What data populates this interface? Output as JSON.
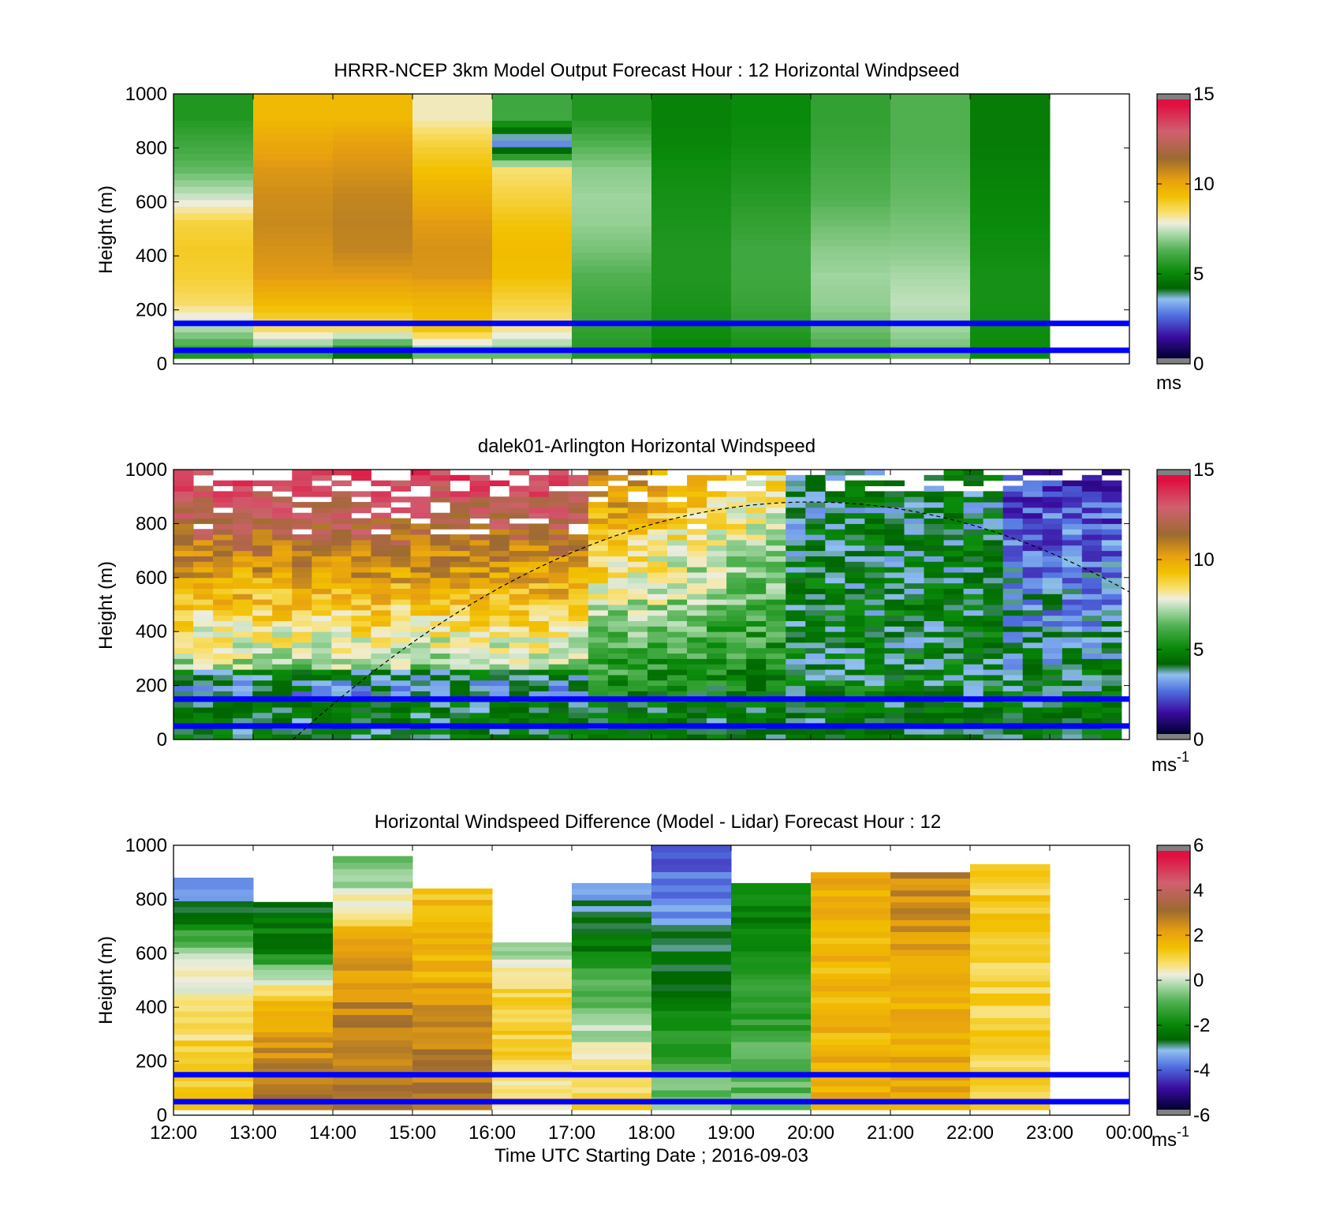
{
  "chart_data": [
    {
      "type": "heatmap",
      "title": "HRRR-NCEP 3km Model Output   Forecast Hour : 12 Horizontal Windpseed",
      "ylabel": "Height (m)",
      "xlabel": "",
      "xlim": [
        12,
        24
      ],
      "ylim": [
        0,
        1000
      ],
      "yticks": [
        "0",
        "200",
        "400",
        "600",
        "800",
        "1000"
      ],
      "x_tick_labels_shown": false,
      "colorbar": {
        "ticks": [
          "0",
          "5",
          "10",
          "15"
        ],
        "range": [
          0,
          15
        ],
        "unit": "ms",
        "unit_superscript": ""
      },
      "reference_lines": {
        "heights_m": [
          150,
          50
        ],
        "color": "#0000ff"
      },
      "gridded_values": {
        "note": "column-wise model windspeed (m/s), hourly columns 12:00-23:00 (no data after 23:00); rows bottom→top at 10 levels up to 1000 m",
        "columns": [
          [
            5.5,
            7.2,
            8.5,
            8.9,
            9.0,
            8.8,
            7.5,
            6.5,
            6.0,
            5.5
          ],
          [
            6.0,
            8.5,
            9.5,
            10.3,
            10.5,
            10.7,
            10.6,
            10.4,
            10.0,
            9.5
          ],
          [
            4.5,
            8.5,
            9.5,
            10.3,
            10.8,
            10.9,
            10.8,
            10.5,
            10.2,
            9.5
          ],
          [
            6.5,
            9.2,
            9.6,
            10.4,
            10.5,
            10.3,
            9.8,
            9.3,
            8.8,
            8.0
          ],
          [
            6.5,
            8.2,
            8.8,
            9.3,
            9.4,
            9.2,
            8.8,
            8.4,
            3.0,
            6.0
          ],
          [
            5.5,
            5.8,
            6.0,
            6.3,
            6.7,
            7.0,
            7.1,
            6.9,
            6.3,
            5.5
          ],
          [
            5.0,
            5.2,
            5.4,
            5.5,
            5.5,
            5.4,
            5.3,
            5.2,
            5.0,
            4.9
          ],
          [
            5.2,
            5.6,
            5.9,
            6.0,
            6.0,
            5.8,
            5.6,
            5.4,
            5.2,
            5.1
          ],
          [
            6.0,
            6.6,
            7.0,
            7.1,
            6.9,
            6.6,
            6.3,
            6.1,
            5.9,
            5.8
          ],
          [
            6.5,
            7.1,
            7.4,
            7.2,
            6.9,
            6.7,
            6.5,
            6.4,
            6.3,
            6.3
          ],
          [
            5.1,
            5.2,
            5.3,
            5.3,
            5.2,
            5.1,
            5.0,
            4.9,
            4.8,
            4.8
          ]
        ]
      }
    },
    {
      "type": "heatmap",
      "title": "dalek01-Arlington  Horizontal Windspeed",
      "ylabel": "Height (m)",
      "xlabel": "",
      "xlim": [
        12,
        24
      ],
      "ylim": [
        0,
        1000
      ],
      "yticks": [
        "0",
        "200",
        "400",
        "600",
        "800",
        "1000"
      ],
      "x_tick_labels_shown": false,
      "colorbar": {
        "ticks": [
          "0",
          "5",
          "10",
          "15"
        ],
        "range": [
          0,
          15
        ],
        "unit": "ms",
        "unit_superscript": "-1"
      },
      "reference_lines": {
        "heights_m": [
          150,
          50
        ],
        "color": "#0000ff"
      },
      "overlay_curve": {
        "style": "dashed",
        "color": "#000000",
        "description": "dashed arc rising from about 13:30 at 0 m to about 880 m near 20:00 and descending to about 520 m at 24:00"
      },
      "gridded_values": {
        "note": "high-resolution lidar retrieval (~15 min x ~20 m); warm (8-11 m/s) aloft before 17:00, transitioning to green (3-6 m/s) with blue/purple (1-3 m/s) patches aloft after 22:00"
      }
    },
    {
      "type": "heatmap",
      "title": "Horizontal Windspeed Difference (Model - Lidar) Forecast Hour : 12",
      "ylabel": "Height (m)",
      "xlabel": "Time UTC  Starting Date ; 2016-09-03",
      "xlim": [
        12,
        24
      ],
      "ylim": [
        0,
        1000
      ],
      "xticks": [
        "12:00",
        "13:00",
        "14:00",
        "15:00",
        "16:00",
        "17:00",
        "18:00",
        "19:00",
        "20:00",
        "21:00",
        "22:00",
        "23:00",
        "00:00"
      ],
      "yticks": [
        "0",
        "200",
        "400",
        "600",
        "800",
        "1000"
      ],
      "colorbar": {
        "ticks": [
          "-6",
          "-4",
          "-2",
          "0",
          "2",
          "4",
          "6"
        ],
        "range": [
          -6,
          6
        ],
        "unit": "ms",
        "unit_superscript": "-1"
      },
      "reference_lines": {
        "heights_m": [
          150,
          50
        ],
        "color": "#0000ff"
      },
      "gridded_values": {
        "note": "hourly difference columns (m/s); data tops per hour",
        "column_tops_m": [
          880,
          790,
          960,
          840,
          640,
          860,
          1000,
          860,
          900,
          900,
          930
        ],
        "column_mean_profiles": [
          [
            1.5,
            1.2,
            0.6,
            0.3,
            -2.0,
            -4.0
          ],
          [
            3.0,
            2.5,
            1.6,
            -2.0,
            -2.5
          ],
          [
            3.0,
            2.8,
            1.8,
            -1.5
          ],
          [
            3.0,
            2.6,
            1.6,
            1.4
          ],
          [
            0.5,
            1.2,
            1.0,
            -0.5
          ],
          [
            1.0,
            0.2,
            -0.8,
            -2.5,
            -3.5
          ],
          [
            -0.5,
            -1.5,
            -2.5,
            -3.5,
            -4.5
          ],
          [
            -0.8,
            -1.2,
            -1.8,
            -2.3
          ],
          [
            1.8,
            1.7,
            1.6,
            1.9
          ],
          [
            2.0,
            1.8,
            2.2,
            2.6
          ],
          [
            1.2,
            1.0,
            1.1,
            1.2
          ]
        ]
      }
    }
  ]
}
